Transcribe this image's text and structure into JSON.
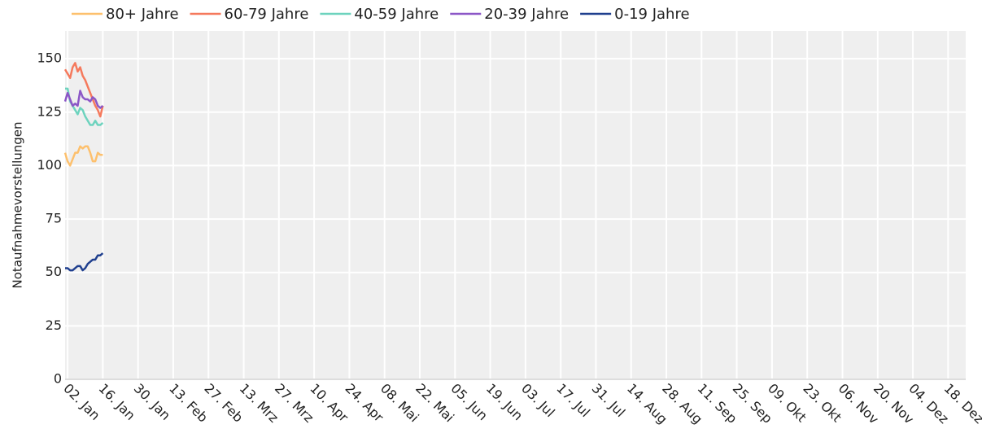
{
  "chart_data": {
    "type": "line",
    "y_label": "Notaufnahmevorstellungen",
    "x": [
      "01-01",
      "01-02",
      "01-03",
      "01-04",
      "01-05",
      "01-06",
      "01-07",
      "01-08",
      "01-09",
      "01-10",
      "01-11",
      "01-12",
      "01-13",
      "01-14",
      "01-15",
      "01-16"
    ],
    "series": [
      {
        "name": "80+ Jahre",
        "color": "#fdc06d",
        "values": [
          106,
          102,
          100,
          103,
          106,
          106,
          109,
          108,
          109,
          109,
          106,
          102,
          102,
          106,
          105,
          105
        ]
      },
      {
        "name": "60-79 Jahre",
        "color": "#f5795c",
        "values": [
          145,
          143,
          141,
          146,
          148,
          144,
          146,
          142,
          140,
          137,
          134,
          131,
          128,
          126,
          123,
          128
        ]
      },
      {
        "name": "40-59 Jahre",
        "color": "#6dd3be",
        "values": [
          136,
          136,
          130,
          128,
          126,
          124,
          127,
          126,
          123,
          121,
          119,
          119,
          121,
          119,
          119,
          120
        ]
      },
      {
        "name": "20-39 Jahre",
        "color": "#8c57c7",
        "values": [
          130,
          134,
          131,
          128,
          129,
          128,
          135,
          132,
          131,
          131,
          130,
          132,
          131,
          128,
          127,
          128
        ]
      },
      {
        "name": "0-19 Jahre",
        "color": "#1f3f8e",
        "values": [
          52,
          52,
          51,
          51,
          52,
          53,
          53,
          51,
          52,
          54,
          55,
          56,
          56,
          58,
          58,
          59
        ]
      }
    ],
    "xlim": [
      "01-01",
      "12-25"
    ],
    "xticks": [
      {
        "value": "01-02",
        "label": "02. Jan"
      },
      {
        "value": "01-16",
        "label": "16. Jan"
      },
      {
        "value": "01-30",
        "label": "30. Jan"
      },
      {
        "value": "02-13",
        "label": "13. Feb"
      },
      {
        "value": "02-27",
        "label": "27. Feb"
      },
      {
        "value": "03-13",
        "label": "13. Mrz"
      },
      {
        "value": "03-27",
        "label": "27. Mrz"
      },
      {
        "value": "04-10",
        "label": "10. Apr"
      },
      {
        "value": "04-24",
        "label": "24. Apr"
      },
      {
        "value": "05-08",
        "label": "08. Mai"
      },
      {
        "value": "05-22",
        "label": "22. Mai"
      },
      {
        "value": "06-05",
        "label": "05. Jun"
      },
      {
        "value": "06-19",
        "label": "19. Jun"
      },
      {
        "value": "07-03",
        "label": "03. Jul"
      },
      {
        "value": "07-17",
        "label": "17. Jul"
      },
      {
        "value": "07-31",
        "label": "31. Jul"
      },
      {
        "value": "08-14",
        "label": "14. Aug"
      },
      {
        "value": "08-28",
        "label": "28. Aug"
      },
      {
        "value": "09-11",
        "label": "11. Sep"
      },
      {
        "value": "09-25",
        "label": "25. Sep"
      },
      {
        "value": "10-09",
        "label": "09. Okt"
      },
      {
        "value": "10-23",
        "label": "23. Okt"
      },
      {
        "value": "11-06",
        "label": "06. Nov"
      },
      {
        "value": "11-20",
        "label": "20. Nov"
      },
      {
        "value": "12-04",
        "label": "04. Dez"
      },
      {
        "value": "12-18",
        "label": "18. Dez"
      }
    ],
    "ylim": [
      0,
      163
    ],
    "yticks": [
      0,
      25,
      50,
      75,
      100,
      125,
      150
    ],
    "grid": true
  }
}
